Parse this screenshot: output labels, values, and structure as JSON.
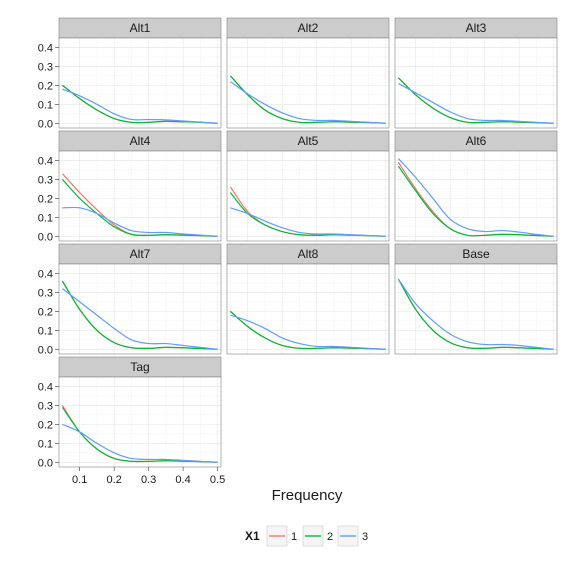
{
  "chart_data": {
    "type": "line",
    "xlabel": "Frequency",
    "ylabel": "",
    "xlim": [
      0.04,
      0.51
    ],
    "ylim": [
      -0.025,
      0.45
    ],
    "x_ticks": [
      0.1,
      0.2,
      0.3,
      0.4,
      0.5
    ],
    "x_tick_labels": [
      "0.1",
      "0.2",
      "0.3",
      "0.4",
      "0.5"
    ],
    "y_ticks": [
      0.0,
      0.1,
      0.2,
      0.3,
      0.4
    ],
    "y_tick_labels": [
      "0.0",
      "0.1",
      "0.2",
      "0.3",
      "0.4"
    ],
    "grid": true,
    "legend": {
      "title": "X1",
      "position": "bottom",
      "entries": [
        {
          "label": "1",
          "color": "#F8766D"
        },
        {
          "label": "2",
          "color": "#00BA38"
        },
        {
          "label": "3",
          "color": "#619CFF"
        }
      ]
    },
    "x": [
      0.05,
      0.1,
      0.15,
      0.2,
      0.25,
      0.3,
      0.35,
      0.4,
      0.45,
      0.5
    ],
    "panels": [
      {
        "name": "Alt1",
        "series": [
          {
            "group": "1",
            "values": [
              0.2,
              0.13,
              0.07,
              0.025,
              0.005,
              0.005,
              0.01,
              0.008,
              0.005,
              0.0
            ]
          },
          {
            "group": "2",
            "values": [
              0.2,
              0.13,
              0.07,
              0.025,
              0.005,
              0.005,
              0.01,
              0.008,
              0.005,
              0.0
            ]
          },
          {
            "group": "3",
            "values": [
              0.18,
              0.145,
              0.1,
              0.05,
              0.02,
              0.02,
              0.018,
              0.012,
              0.006,
              0.0
            ]
          }
        ]
      },
      {
        "name": "Alt2",
        "series": [
          {
            "group": "1",
            "values": [
              0.25,
              0.15,
              0.07,
              0.025,
              0.005,
              0.005,
              0.008,
              0.006,
              0.004,
              0.0
            ]
          },
          {
            "group": "2",
            "values": [
              0.25,
              0.15,
              0.07,
              0.025,
              0.005,
              0.005,
              0.008,
              0.006,
              0.004,
              0.0
            ]
          },
          {
            "group": "3",
            "values": [
              0.22,
              0.155,
              0.1,
              0.055,
              0.025,
              0.015,
              0.015,
              0.01,
              0.005,
              0.0
            ]
          }
        ]
      },
      {
        "name": "Alt3",
        "series": [
          {
            "group": "1",
            "values": [
              0.24,
              0.15,
              0.08,
              0.03,
              0.005,
              0.005,
              0.008,
              0.006,
              0.003,
              0.0
            ]
          },
          {
            "group": "2",
            "values": [
              0.24,
              0.15,
              0.08,
              0.03,
              0.005,
              0.005,
              0.008,
              0.006,
              0.003,
              0.0
            ]
          },
          {
            "group": "3",
            "values": [
              0.21,
              0.16,
              0.11,
              0.06,
              0.025,
              0.015,
              0.015,
              0.01,
              0.005,
              0.0
            ]
          }
        ]
      },
      {
        "name": "Alt4",
        "series": [
          {
            "group": "1",
            "values": [
              0.33,
              0.23,
              0.14,
              0.06,
              0.01,
              0.005,
              0.008,
              0.006,
              0.003,
              0.0
            ]
          },
          {
            "group": "2",
            "values": [
              0.3,
              0.2,
              0.12,
              0.05,
              0.01,
              0.005,
              0.008,
              0.006,
              0.003,
              0.0
            ]
          },
          {
            "group": "3",
            "values": [
              0.15,
              0.15,
              0.12,
              0.07,
              0.03,
              0.02,
              0.02,
              0.012,
              0.006,
              0.0
            ]
          }
        ]
      },
      {
        "name": "Alt5",
        "series": [
          {
            "group": "1",
            "values": [
              0.26,
              0.13,
              0.06,
              0.025,
              0.008,
              0.005,
              0.008,
              0.006,
              0.003,
              0.0
            ]
          },
          {
            "group": "2",
            "values": [
              0.23,
              0.12,
              0.06,
              0.025,
              0.008,
              0.005,
              0.008,
              0.006,
              0.003,
              0.0
            ]
          },
          {
            "group": "3",
            "values": [
              0.15,
              0.12,
              0.08,
              0.045,
              0.02,
              0.012,
              0.012,
              0.008,
              0.004,
              0.0
            ]
          }
        ]
      },
      {
        "name": "Alt6",
        "series": [
          {
            "group": "1",
            "values": [
              0.39,
              0.25,
              0.13,
              0.04,
              0.005,
              0.005,
              0.01,
              0.008,
              0.004,
              0.0
            ]
          },
          {
            "group": "2",
            "values": [
              0.37,
              0.24,
              0.12,
              0.04,
              0.005,
              0.005,
              0.01,
              0.008,
              0.004,
              0.0
            ]
          },
          {
            "group": "3",
            "values": [
              0.41,
              0.31,
              0.2,
              0.09,
              0.04,
              0.025,
              0.03,
              0.022,
              0.01,
              0.0
            ]
          }
        ]
      },
      {
        "name": "Alt7",
        "series": [
          {
            "group": "1",
            "values": [
              0.36,
              0.21,
              0.1,
              0.035,
              0.008,
              0.005,
              0.01,
              0.008,
              0.004,
              0.0
            ]
          },
          {
            "group": "2",
            "values": [
              0.36,
              0.21,
              0.1,
              0.035,
              0.008,
              0.005,
              0.01,
              0.008,
              0.004,
              0.0
            ]
          },
          {
            "group": "3",
            "values": [
              0.32,
              0.25,
              0.18,
              0.11,
              0.05,
              0.03,
              0.03,
              0.02,
              0.01,
              0.0
            ]
          }
        ]
      },
      {
        "name": "Alt8",
        "series": [
          {
            "group": "1",
            "values": [
              0.2,
              0.12,
              0.06,
              0.02,
              0.005,
              0.005,
              0.008,
              0.006,
              0.003,
              0.0
            ]
          },
          {
            "group": "2",
            "values": [
              0.2,
              0.12,
              0.06,
              0.02,
              0.005,
              0.005,
              0.008,
              0.006,
              0.003,
              0.0
            ]
          },
          {
            "group": "3",
            "values": [
              0.18,
              0.15,
              0.11,
              0.06,
              0.03,
              0.015,
              0.015,
              0.01,
              0.005,
              0.0
            ]
          }
        ]
      },
      {
        "name": "Base",
        "series": [
          {
            "group": "1",
            "values": [
              0.37,
              0.21,
              0.1,
              0.035,
              0.008,
              0.005,
              0.01,
              0.008,
              0.004,
              0.0
            ]
          },
          {
            "group": "2",
            "values": [
              0.37,
              0.21,
              0.1,
              0.035,
              0.008,
              0.005,
              0.01,
              0.008,
              0.004,
              0.0
            ]
          },
          {
            "group": "3",
            "values": [
              0.37,
              0.24,
              0.15,
              0.08,
              0.04,
              0.025,
              0.025,
              0.02,
              0.01,
              0.0
            ]
          }
        ]
      },
      {
        "name": "Tag",
        "series": [
          {
            "group": "1",
            "values": [
              0.3,
              0.16,
              0.07,
              0.02,
              0.005,
              0.005,
              0.008,
              0.006,
              0.003,
              0.0
            ]
          },
          {
            "group": "2",
            "values": [
              0.29,
              0.16,
              0.07,
              0.02,
              0.005,
              0.005,
              0.008,
              0.006,
              0.003,
              0.0
            ]
          },
          {
            "group": "3",
            "values": [
              0.2,
              0.16,
              0.1,
              0.05,
              0.02,
              0.015,
              0.015,
              0.01,
              0.005,
              0.0
            ]
          }
        ]
      }
    ]
  }
}
